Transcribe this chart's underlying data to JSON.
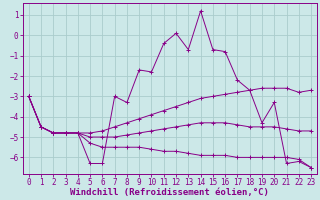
{
  "xlabel": "Windchill (Refroidissement éolien,°C)",
  "ylabel": "",
  "bg_color": "#cce8e8",
  "grid_color": "#aacccc",
  "line_color": "#880088",
  "xlim": [
    -0.5,
    23.5
  ],
  "ylim": [
    -6.8,
    1.6
  ],
  "yticks": [
    1,
    0,
    -1,
    -2,
    -3,
    -4,
    -5,
    -6
  ],
  "xticks": [
    0,
    1,
    2,
    3,
    4,
    5,
    6,
    7,
    8,
    9,
    10,
    11,
    12,
    13,
    14,
    15,
    16,
    17,
    18,
    19,
    20,
    21,
    22,
    23
  ],
  "series": [
    {
      "x": [
        0,
        1,
        2,
        3,
        4,
        5,
        6,
        7,
        8,
        9,
        10,
        11,
        12,
        13,
        14,
        15,
        16,
        17,
        18,
        19,
        20,
        21,
        22,
        23
      ],
      "y": [
        -3.0,
        -4.5,
        -4.8,
        -4.8,
        -4.8,
        -6.3,
        -6.3,
        -3.0,
        -3.3,
        -1.7,
        -1.8,
        -0.4,
        0.1,
        -0.7,
        1.2,
        -0.7,
        -0.8,
        -2.2,
        -2.7,
        -4.3,
        -3.3,
        -6.3,
        -6.2,
        -6.5
      ]
    },
    {
      "x": [
        0,
        1,
        2,
        3,
        4,
        5,
        6,
        7,
        8,
        9,
        10,
        11,
        12,
        13,
        14,
        15,
        16,
        17,
        18,
        19,
        20,
        21,
        22,
        23
      ],
      "y": [
        -3.0,
        -4.5,
        -4.8,
        -4.8,
        -4.8,
        -4.8,
        -4.7,
        -4.5,
        -4.3,
        -4.1,
        -3.9,
        -3.7,
        -3.5,
        -3.3,
        -3.1,
        -3.0,
        -2.9,
        -2.8,
        -2.7,
        -2.6,
        -2.6,
        -2.6,
        -2.8,
        -2.7
      ]
    },
    {
      "x": [
        0,
        1,
        2,
        3,
        4,
        5,
        6,
        7,
        8,
        9,
        10,
        11,
        12,
        13,
        14,
        15,
        16,
        17,
        18,
        19,
        20,
        21,
        22,
        23
      ],
      "y": [
        -3.0,
        -4.5,
        -4.8,
        -4.8,
        -4.8,
        -5.0,
        -5.0,
        -5.0,
        -4.9,
        -4.8,
        -4.7,
        -4.6,
        -4.5,
        -4.4,
        -4.3,
        -4.3,
        -4.3,
        -4.4,
        -4.5,
        -4.5,
        -4.5,
        -4.6,
        -4.7,
        -4.7
      ]
    },
    {
      "x": [
        0,
        1,
        2,
        3,
        4,
        5,
        6,
        7,
        8,
        9,
        10,
        11,
        12,
        13,
        14,
        15,
        16,
        17,
        18,
        19,
        20,
        21,
        22,
        23
      ],
      "y": [
        -3.0,
        -4.5,
        -4.8,
        -4.8,
        -4.8,
        -5.3,
        -5.5,
        -5.5,
        -5.5,
        -5.5,
        -5.6,
        -5.7,
        -5.7,
        -5.8,
        -5.9,
        -5.9,
        -5.9,
        -6.0,
        -6.0,
        -6.0,
        -6.0,
        -6.0,
        -6.1,
        -6.5
      ]
    }
  ],
  "tick_fontsize": 5.5,
  "label_fontsize": 6.5
}
